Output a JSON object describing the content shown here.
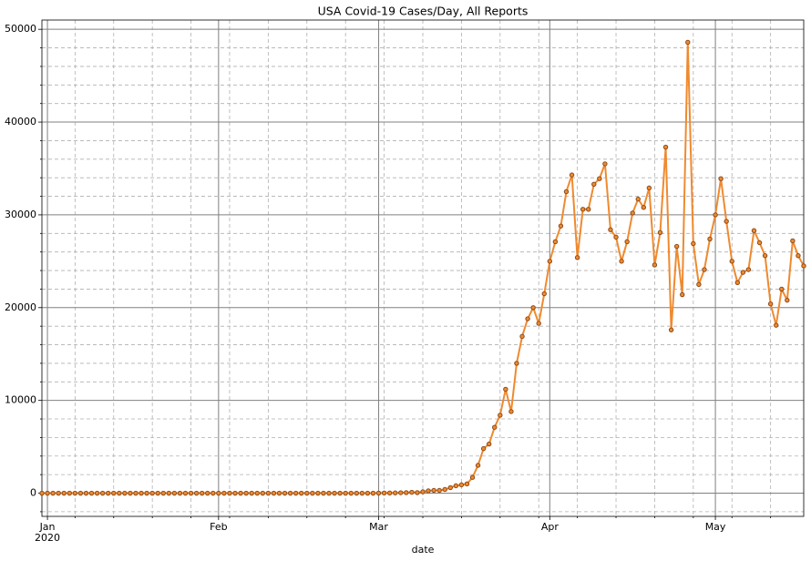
{
  "chart_data": {
    "type": "line",
    "title": "USA Covid-19 Cases/Day, All Reports",
    "x_label": "date",
    "xticks_year": "2020",
    "x": [
      0,
      1,
      2,
      3,
      4,
      5,
      6,
      7,
      8,
      9,
      10,
      11,
      12,
      13,
      14,
      15,
      16,
      17,
      18,
      19,
      20,
      21,
      22,
      23,
      24,
      25,
      26,
      27,
      28,
      29,
      30,
      31,
      32,
      33,
      34,
      35,
      36,
      37,
      38,
      39,
      40,
      41,
      42,
      43,
      44,
      45,
      46,
      47,
      48,
      49,
      50,
      51,
      52,
      53,
      54,
      55,
      56,
      57,
      58,
      59,
      60,
      61,
      62,
      63,
      64,
      65,
      66,
      67,
      68,
      69,
      70,
      71,
      72,
      73,
      74,
      75,
      76,
      77,
      78,
      79,
      80,
      81,
      82,
      83,
      84,
      85,
      86,
      87,
      88,
      89,
      90,
      91,
      92,
      93,
      94,
      95,
      96,
      97,
      98,
      99,
      100,
      101,
      102,
      103,
      104,
      105,
      106,
      107,
      108,
      109,
      110,
      111,
      112,
      113,
      114,
      115,
      116,
      117,
      118,
      119,
      120,
      121,
      122,
      123,
      124,
      125,
      126,
      127,
      128,
      129,
      130,
      131,
      132,
      133,
      134,
      135,
      136,
      137,
      138
    ],
    "series": [
      {
        "color": "#ef8a2f",
        "values": [
          0,
          0,
          0,
          0,
          0,
          0,
          0,
          0,
          0,
          0,
          0,
          0,
          0,
          0,
          0,
          0,
          0,
          0,
          0,
          0,
          0,
          0,
          0,
          0,
          0,
          0,
          0,
          0,
          0,
          0,
          0,
          0,
          0,
          0,
          0,
          0,
          0,
          0,
          0,
          0,
          0,
          0,
          0,
          0,
          0,
          0,
          0,
          0,
          0,
          0,
          0,
          0,
          0,
          0,
          0,
          0,
          0,
          0,
          0,
          0,
          0,
          10,
          20,
          20,
          30,
          50,
          60,
          100,
          60,
          150,
          250,
          300,
          300,
          400,
          600,
          800,
          900,
          1000,
          1700,
          3000,
          4800,
          5300,
          7100,
          8400,
          11200,
          8800,
          14000,
          16900,
          18800,
          20000,
          18300,
          21500,
          25000,
          27100,
          28800,
          32500,
          34300,
          25400,
          30600,
          30600,
          33300,
          33900,
          35500,
          28400,
          27600,
          25000,
          27100,
          30200,
          31700,
          30800,
          32900,
          24600,
          28100,
          37300,
          17600,
          26600,
          21400,
          48600,
          26900,
          22500,
          24100,
          27400,
          30000,
          33900,
          29300,
          25000,
          22700,
          23800,
          24100,
          28300,
          27000,
          25600,
          20400,
          18100,
          22000,
          20800,
          27200,
          25600,
          24500
        ]
      }
    ],
    "xlim": [
      0,
      138
    ],
    "xticks": [
      {
        "value": 1,
        "label": "Jan"
      },
      {
        "value": 32,
        "label": "Feb"
      },
      {
        "value": 61,
        "label": "Mar"
      },
      {
        "value": 92,
        "label": "Apr"
      },
      {
        "value": 122,
        "label": "May"
      }
    ],
    "xticks_minor": [
      6,
      13,
      20,
      27,
      34,
      41,
      48,
      55,
      62,
      69,
      76,
      83,
      90,
      97,
      104,
      111,
      118,
      125,
      132
    ],
    "ylim": [
      -2500,
      51000
    ],
    "yticks": [
      0,
      10000,
      20000,
      30000,
      40000,
      50000
    ],
    "yticks_minor": [
      -2000,
      2000,
      4000,
      6000,
      8000,
      12000,
      14000,
      16000,
      18000,
      22000,
      24000,
      26000,
      28000,
      32000,
      34000,
      36000,
      38000,
      42000,
      44000,
      46000,
      48000
    ],
    "grid": true
  }
}
